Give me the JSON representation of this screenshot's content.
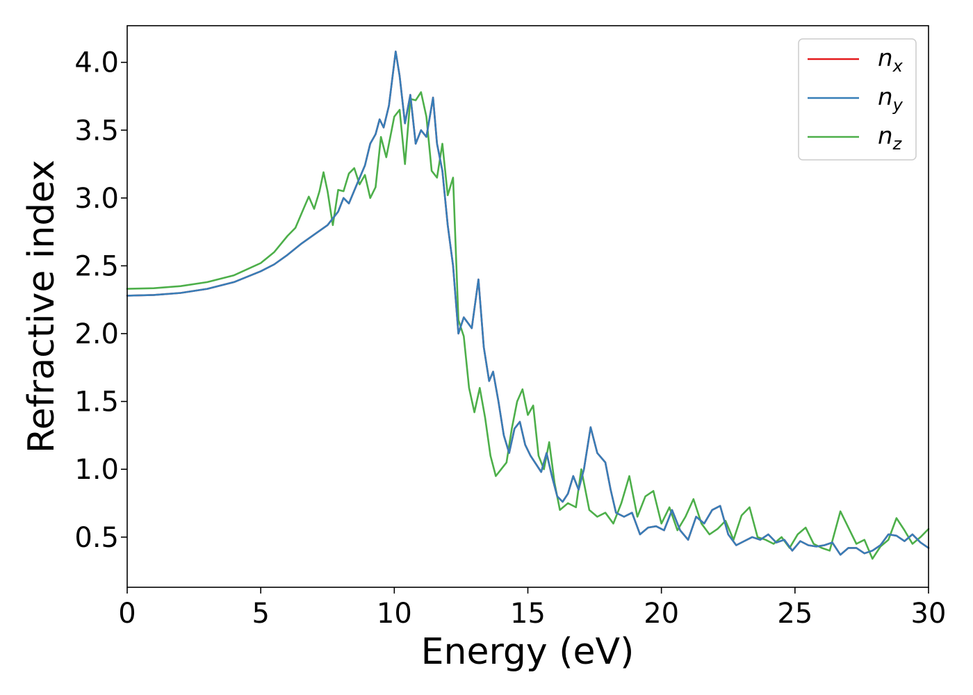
{
  "chart_data": {
    "type": "line",
    "title": "",
    "xlabel": "Energy (eV)",
    "ylabel": "Refractive index",
    "xlim": [
      0,
      30
    ],
    "ylim": [
      0.13,
      4.27
    ],
    "xticks": [
      0,
      5,
      10,
      15,
      20,
      25,
      30
    ],
    "xtick_labels": [
      "0",
      "5",
      "10",
      "15",
      "20",
      "25",
      "30"
    ],
    "yticks": [
      0.5,
      1.0,
      1.5,
      2.0,
      2.5,
      3.0,
      3.5,
      4.0
    ],
    "ytick_labels": [
      "0.5",
      "1.0",
      "1.5",
      "2.0",
      "2.5",
      "3.0",
      "3.5",
      "4.0"
    ],
    "grid": false,
    "legend_position": "top-right",
    "series": [
      {
        "name": "n_x",
        "label_base": "n",
        "label_sub": "x",
        "color": "#e41a1c",
        "points": [
          [
            0,
            2.28
          ],
          [
            1,
            2.285
          ],
          [
            2,
            2.3
          ],
          [
            3,
            2.33
          ],
          [
            4,
            2.38
          ],
          [
            5,
            2.46
          ],
          [
            5.5,
            2.51
          ],
          [
            6,
            2.58
          ],
          [
            6.5,
            2.66
          ],
          [
            7,
            2.73
          ],
          [
            7.5,
            2.8
          ],
          [
            7.9,
            2.9
          ],
          [
            8.1,
            3.0
          ],
          [
            8.3,
            2.96
          ],
          [
            8.6,
            3.1
          ],
          [
            8.9,
            3.24
          ],
          [
            9.1,
            3.4
          ],
          [
            9.3,
            3.47
          ],
          [
            9.45,
            3.58
          ],
          [
            9.6,
            3.52
          ],
          [
            9.8,
            3.68
          ],
          [
            10.05,
            4.08
          ],
          [
            10.2,
            3.9
          ],
          [
            10.4,
            3.55
          ],
          [
            10.6,
            3.76
          ],
          [
            10.8,
            3.4
          ],
          [
            11.0,
            3.5
          ],
          [
            11.2,
            3.45
          ],
          [
            11.45,
            3.74
          ],
          [
            11.6,
            3.4
          ],
          [
            11.8,
            3.2
          ],
          [
            12.0,
            2.8
          ],
          [
            12.2,
            2.5
          ],
          [
            12.4,
            2.0
          ],
          [
            12.6,
            2.12
          ],
          [
            12.9,
            2.04
          ],
          [
            13.15,
            2.4
          ],
          [
            13.35,
            1.9
          ],
          [
            13.55,
            1.65
          ],
          [
            13.7,
            1.72
          ],
          [
            13.9,
            1.5
          ],
          [
            14.1,
            1.25
          ],
          [
            14.3,
            1.12
          ],
          [
            14.5,
            1.3
          ],
          [
            14.7,
            1.35
          ],
          [
            14.9,
            1.18
          ],
          [
            15.1,
            1.1
          ],
          [
            15.3,
            1.04
          ],
          [
            15.5,
            0.98
          ],
          [
            15.7,
            1.12
          ],
          [
            15.9,
            0.95
          ],
          [
            16.1,
            0.8
          ],
          [
            16.3,
            0.76
          ],
          [
            16.5,
            0.82
          ],
          [
            16.7,
            0.95
          ],
          [
            16.9,
            0.85
          ],
          [
            17.1,
            1.0
          ],
          [
            17.35,
            1.31
          ],
          [
            17.6,
            1.12
          ],
          [
            17.9,
            1.05
          ],
          [
            18.1,
            0.85
          ],
          [
            18.3,
            0.68
          ],
          [
            18.6,
            0.65
          ],
          [
            18.9,
            0.68
          ],
          [
            19.2,
            0.52
          ],
          [
            19.5,
            0.57
          ],
          [
            19.8,
            0.58
          ],
          [
            20.1,
            0.55
          ],
          [
            20.4,
            0.7
          ],
          [
            20.7,
            0.55
          ],
          [
            21.0,
            0.48
          ],
          [
            21.3,
            0.65
          ],
          [
            21.6,
            0.6
          ],
          [
            21.9,
            0.7
          ],
          [
            22.2,
            0.73
          ],
          [
            22.5,
            0.52
          ],
          [
            22.8,
            0.44
          ],
          [
            23.1,
            0.47
          ],
          [
            23.4,
            0.5
          ],
          [
            23.7,
            0.48
          ],
          [
            24.0,
            0.52
          ],
          [
            24.3,
            0.46
          ],
          [
            24.6,
            0.48
          ],
          [
            24.9,
            0.4
          ],
          [
            25.2,
            0.47
          ],
          [
            25.5,
            0.44
          ],
          [
            25.8,
            0.43
          ],
          [
            26.1,
            0.44
          ],
          [
            26.4,
            0.46
          ],
          [
            26.7,
            0.37
          ],
          [
            27.0,
            0.42
          ],
          [
            27.3,
            0.42
          ],
          [
            27.6,
            0.38
          ],
          [
            27.9,
            0.4
          ],
          [
            28.2,
            0.44
          ],
          [
            28.5,
            0.52
          ],
          [
            28.8,
            0.51
          ],
          [
            29.1,
            0.47
          ],
          [
            29.4,
            0.52
          ],
          [
            29.7,
            0.46
          ],
          [
            30.0,
            0.42
          ]
        ]
      },
      {
        "name": "n_y",
        "label_base": "n",
        "label_sub": "y",
        "color": "#377eb8",
        "points": [
          [
            0,
            2.28
          ],
          [
            1,
            2.285
          ],
          [
            2,
            2.3
          ],
          [
            3,
            2.33
          ],
          [
            4,
            2.38
          ],
          [
            5,
            2.46
          ],
          [
            5.5,
            2.51
          ],
          [
            6,
            2.58
          ],
          [
            6.5,
            2.66
          ],
          [
            7,
            2.73
          ],
          [
            7.5,
            2.8
          ],
          [
            7.9,
            2.9
          ],
          [
            8.1,
            3.0
          ],
          [
            8.3,
            2.96
          ],
          [
            8.6,
            3.1
          ],
          [
            8.9,
            3.24
          ],
          [
            9.1,
            3.4
          ],
          [
            9.3,
            3.47
          ],
          [
            9.45,
            3.58
          ],
          [
            9.6,
            3.52
          ],
          [
            9.8,
            3.68
          ],
          [
            10.05,
            4.08
          ],
          [
            10.2,
            3.9
          ],
          [
            10.4,
            3.55
          ],
          [
            10.6,
            3.76
          ],
          [
            10.8,
            3.4
          ],
          [
            11.0,
            3.5
          ],
          [
            11.2,
            3.45
          ],
          [
            11.45,
            3.74
          ],
          [
            11.6,
            3.4
          ],
          [
            11.8,
            3.2
          ],
          [
            12.0,
            2.8
          ],
          [
            12.2,
            2.5
          ],
          [
            12.4,
            2.0
          ],
          [
            12.6,
            2.12
          ],
          [
            12.9,
            2.04
          ],
          [
            13.15,
            2.4
          ],
          [
            13.35,
            1.9
          ],
          [
            13.55,
            1.65
          ],
          [
            13.7,
            1.72
          ],
          [
            13.9,
            1.5
          ],
          [
            14.1,
            1.25
          ],
          [
            14.3,
            1.12
          ],
          [
            14.5,
            1.3
          ],
          [
            14.7,
            1.35
          ],
          [
            14.9,
            1.18
          ],
          [
            15.1,
            1.1
          ],
          [
            15.3,
            1.04
          ],
          [
            15.5,
            0.98
          ],
          [
            15.7,
            1.12
          ],
          [
            15.9,
            0.95
          ],
          [
            16.1,
            0.8
          ],
          [
            16.3,
            0.76
          ],
          [
            16.5,
            0.82
          ],
          [
            16.7,
            0.95
          ],
          [
            16.9,
            0.85
          ],
          [
            17.1,
            1.0
          ],
          [
            17.35,
            1.31
          ],
          [
            17.6,
            1.12
          ],
          [
            17.9,
            1.05
          ],
          [
            18.1,
            0.85
          ],
          [
            18.3,
            0.68
          ],
          [
            18.6,
            0.65
          ],
          [
            18.9,
            0.68
          ],
          [
            19.2,
            0.52
          ],
          [
            19.5,
            0.57
          ],
          [
            19.8,
            0.58
          ],
          [
            20.1,
            0.55
          ],
          [
            20.4,
            0.7
          ],
          [
            20.7,
            0.55
          ],
          [
            21.0,
            0.48
          ],
          [
            21.3,
            0.65
          ],
          [
            21.6,
            0.6
          ],
          [
            21.9,
            0.7
          ],
          [
            22.2,
            0.73
          ],
          [
            22.5,
            0.52
          ],
          [
            22.8,
            0.44
          ],
          [
            23.1,
            0.47
          ],
          [
            23.4,
            0.5
          ],
          [
            23.7,
            0.48
          ],
          [
            24.0,
            0.52
          ],
          [
            24.3,
            0.46
          ],
          [
            24.6,
            0.48
          ],
          [
            24.9,
            0.4
          ],
          [
            25.2,
            0.47
          ],
          [
            25.5,
            0.44
          ],
          [
            25.8,
            0.43
          ],
          [
            26.1,
            0.44
          ],
          [
            26.4,
            0.46
          ],
          [
            26.7,
            0.37
          ],
          [
            27.0,
            0.42
          ],
          [
            27.3,
            0.42
          ],
          [
            27.6,
            0.38
          ],
          [
            27.9,
            0.4
          ],
          [
            28.2,
            0.44
          ],
          [
            28.5,
            0.52
          ],
          [
            28.8,
            0.51
          ],
          [
            29.1,
            0.47
          ],
          [
            29.4,
            0.52
          ],
          [
            29.7,
            0.46
          ],
          [
            30.0,
            0.42
          ]
        ]
      },
      {
        "name": "n_z",
        "label_base": "n",
        "label_sub": "z",
        "color": "#4daf4a",
        "points": [
          [
            0,
            2.33
          ],
          [
            1,
            2.335
          ],
          [
            2,
            2.35
          ],
          [
            3,
            2.38
          ],
          [
            4,
            2.43
          ],
          [
            5,
            2.52
          ],
          [
            5.5,
            2.6
          ],
          [
            6,
            2.72
          ],
          [
            6.3,
            2.78
          ],
          [
            6.6,
            2.92
          ],
          [
            6.8,
            3.01
          ],
          [
            7.0,
            2.92
          ],
          [
            7.2,
            3.05
          ],
          [
            7.35,
            3.19
          ],
          [
            7.5,
            3.05
          ],
          [
            7.7,
            2.8
          ],
          [
            7.9,
            3.06
          ],
          [
            8.1,
            3.05
          ],
          [
            8.3,
            3.18
          ],
          [
            8.5,
            3.22
          ],
          [
            8.7,
            3.1
          ],
          [
            8.9,
            3.17
          ],
          [
            9.1,
            3.0
          ],
          [
            9.3,
            3.08
          ],
          [
            9.5,
            3.45
          ],
          [
            9.7,
            3.3
          ],
          [
            9.9,
            3.5
          ],
          [
            10.0,
            3.6
          ],
          [
            10.2,
            3.65
          ],
          [
            10.4,
            3.25
          ],
          [
            10.6,
            3.73
          ],
          [
            10.8,
            3.72
          ],
          [
            11.0,
            3.78
          ],
          [
            11.2,
            3.6
          ],
          [
            11.4,
            3.2
          ],
          [
            11.6,
            3.15
          ],
          [
            11.8,
            3.4
          ],
          [
            12.0,
            3.02
          ],
          [
            12.2,
            3.15
          ],
          [
            12.4,
            2.1
          ],
          [
            12.6,
            1.98
          ],
          [
            12.8,
            1.6
          ],
          [
            13.0,
            1.42
          ],
          [
            13.2,
            1.6
          ],
          [
            13.4,
            1.38
          ],
          [
            13.6,
            1.1
          ],
          [
            13.8,
            0.95
          ],
          [
            14.0,
            1.0
          ],
          [
            14.2,
            1.05
          ],
          [
            14.4,
            1.3
          ],
          [
            14.6,
            1.5
          ],
          [
            14.8,
            1.59
          ],
          [
            15.0,
            1.4
          ],
          [
            15.2,
            1.47
          ],
          [
            15.4,
            1.1
          ],
          [
            15.6,
            1.0
          ],
          [
            15.8,
            1.2
          ],
          [
            16.0,
            0.9
          ],
          [
            16.2,
            0.7
          ],
          [
            16.5,
            0.75
          ],
          [
            16.8,
            0.72
          ],
          [
            17.0,
            1.0
          ],
          [
            17.3,
            0.7
          ],
          [
            17.6,
            0.65
          ],
          [
            17.9,
            0.68
          ],
          [
            18.2,
            0.6
          ],
          [
            18.5,
            0.75
          ],
          [
            18.8,
            0.95
          ],
          [
            19.1,
            0.65
          ],
          [
            19.4,
            0.8
          ],
          [
            19.7,
            0.84
          ],
          [
            20.0,
            0.6
          ],
          [
            20.3,
            0.72
          ],
          [
            20.6,
            0.55
          ],
          [
            20.9,
            0.65
          ],
          [
            21.2,
            0.78
          ],
          [
            21.5,
            0.6
          ],
          [
            21.8,
            0.52
          ],
          [
            22.1,
            0.56
          ],
          [
            22.4,
            0.62
          ],
          [
            22.7,
            0.48
          ],
          [
            23.0,
            0.66
          ],
          [
            23.3,
            0.72
          ],
          [
            23.6,
            0.5
          ],
          [
            23.9,
            0.48
          ],
          [
            24.2,
            0.45
          ],
          [
            24.5,
            0.5
          ],
          [
            24.8,
            0.42
          ],
          [
            25.1,
            0.52
          ],
          [
            25.4,
            0.57
          ],
          [
            25.7,
            0.45
          ],
          [
            26.0,
            0.42
          ],
          [
            26.3,
            0.4
          ],
          [
            26.7,
            0.69
          ],
          [
            27.0,
            0.57
          ],
          [
            27.3,
            0.45
          ],
          [
            27.6,
            0.48
          ],
          [
            27.9,
            0.34
          ],
          [
            28.2,
            0.43
          ],
          [
            28.5,
            0.48
          ],
          [
            28.8,
            0.64
          ],
          [
            29.1,
            0.55
          ],
          [
            29.4,
            0.45
          ],
          [
            29.7,
            0.5
          ],
          [
            30.0,
            0.56
          ]
        ]
      }
    ]
  }
}
